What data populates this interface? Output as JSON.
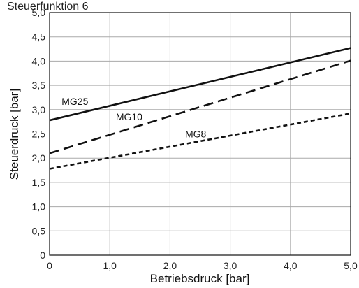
{
  "chart_data": {
    "type": "line",
    "title": "Steuerfunktion 6",
    "xlabel": "Betriebsdruck [bar]",
    "ylabel": "Steuerdruck [bar]",
    "xlim": [
      0,
      5
    ],
    "ylim": [
      0,
      5
    ],
    "grid": true,
    "x_ticks": [
      0,
      1,
      2,
      3,
      4,
      5
    ],
    "x_tick_labels": [
      "0",
      "1,0",
      "2,0",
      "3,0",
      "4,0",
      "5,0"
    ],
    "y_ticks": [
      0,
      0.5,
      1,
      1.5,
      2,
      2.5,
      3,
      3.5,
      4,
      4.5,
      5
    ],
    "y_tick_labels": [
      "0",
      "0,5",
      "1,0",
      "1,5",
      "2,0",
      "2,5",
      "3,0",
      "3,5",
      "4,0",
      "4,5",
      "5,0"
    ],
    "series": [
      {
        "name": "MG25",
        "x": [
          0,
          5
        ],
        "values": [
          2.78,
          4.27
        ],
        "style": "solid",
        "color": "#111111",
        "label_at": [
          0.2,
          3.1
        ]
      },
      {
        "name": "MG10",
        "x": [
          0,
          5
        ],
        "values": [
          2.1,
          4.01
        ],
        "style": "dashed",
        "color": "#111111",
        "label_at": [
          1.1,
          2.78
        ]
      },
      {
        "name": "MG8",
        "x": [
          0,
          5
        ],
        "values": [
          1.78,
          2.92
        ],
        "style": "dotted",
        "color": "#111111",
        "label_at": [
          2.25,
          2.43
        ]
      }
    ]
  }
}
